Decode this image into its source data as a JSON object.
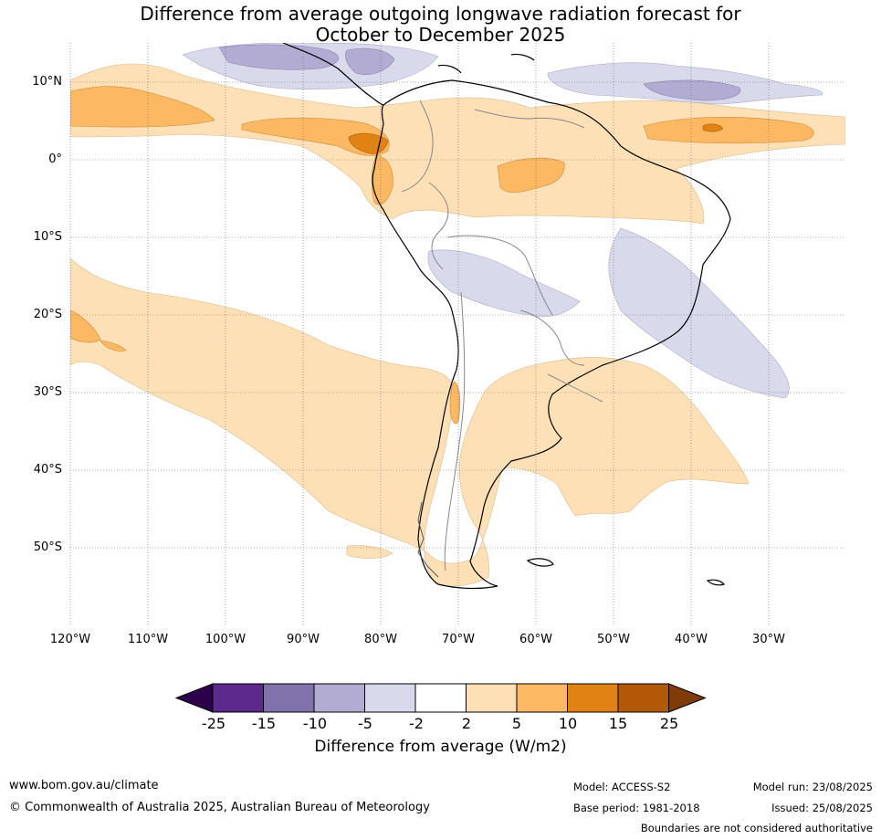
{
  "title_line1": "Difference from average outgoing longwave radiation forecast for",
  "title_line2": "October to December 2025",
  "lat_labels": [
    "10°N",
    "0°",
    "10°S",
    "20°S",
    "30°S",
    "40°S",
    "50°S"
  ],
  "lon_labels": [
    "120°W",
    "110°W",
    "100°W",
    "90°W",
    "80°W",
    "70°W",
    "60°W",
    "50°W",
    "40°W",
    "30°W"
  ],
  "colorbar": {
    "title": "Difference from average (W/m2)",
    "ticks": [
      "-25",
      "-15",
      "-10",
      "-5",
      "-2",
      "2",
      "5",
      "10",
      "15",
      "25"
    ],
    "colors": [
      "#2d004b",
      "#5b2a8c",
      "#8073ac",
      "#b2abd2",
      "#d8daeb",
      "#ffffff",
      "#fee0b6",
      "#fdb863",
      "#e08214",
      "#b35806",
      "#7f3b08"
    ]
  },
  "footer": {
    "website": "www.bom.gov.au/climate",
    "copyright": "© Commonwealth of Australia 2025, Australian Bureau of Meteorology",
    "model": "Model: ACCESS-S2",
    "base_period": "Base period: 1981-2018",
    "model_run": "Model run: 23/08/2025",
    "issued": "Issued: 25/08/2025",
    "disclaimer": "Boundaries are not considered authoritative"
  }
}
